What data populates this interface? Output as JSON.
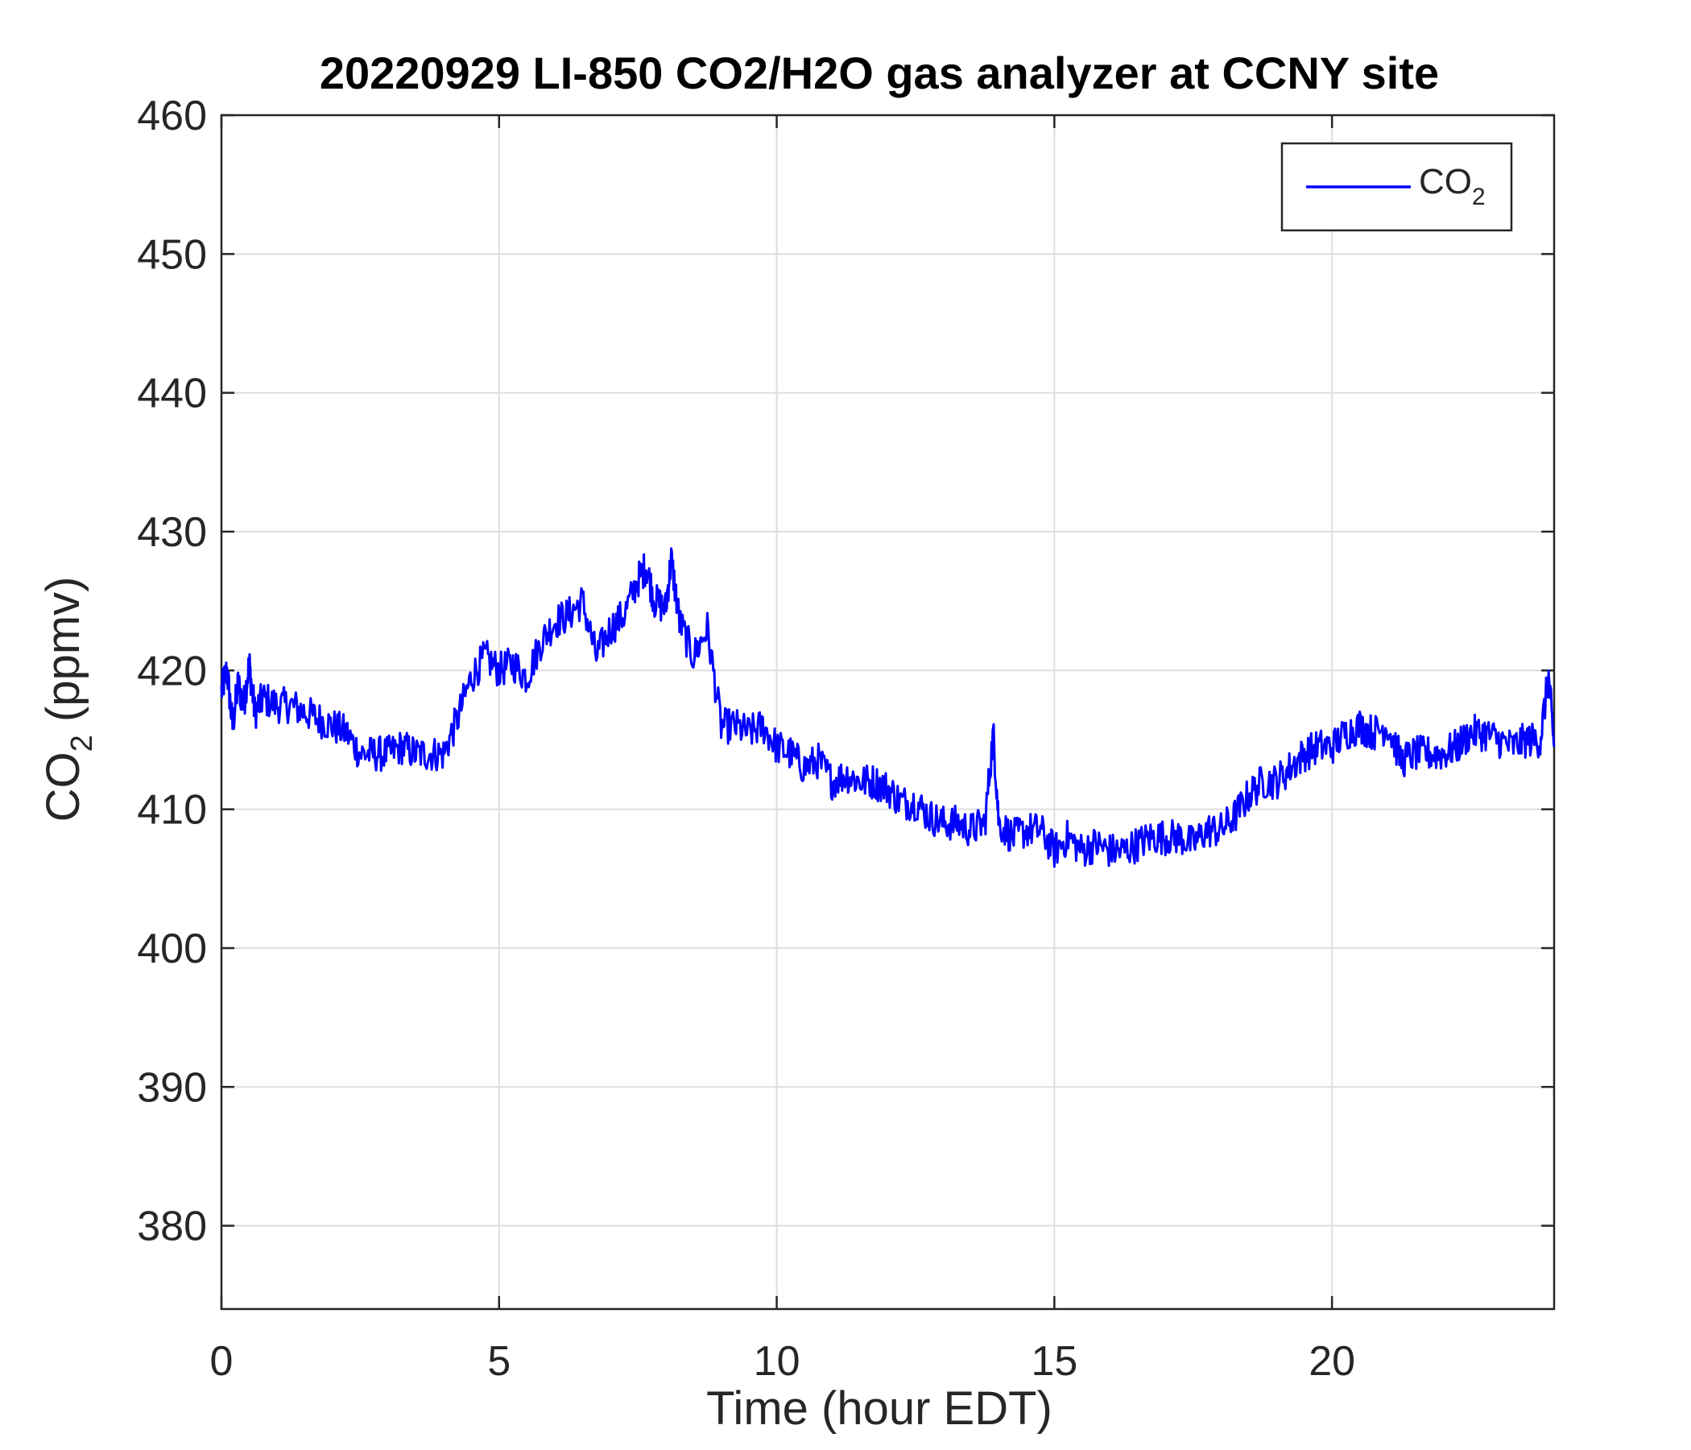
{
  "chart_data": {
    "type": "line",
    "title": "20220929 LI-850 CO2/H2O gas analyzer at CCNY site",
    "xlabel": "Time (hour EDT)",
    "ylabel": {
      "main": "CO",
      "sub": "2",
      "unit": " (ppmv)"
    },
    "xlim": [
      0,
      24
    ],
    "ylim": [
      374,
      460
    ],
    "xticks": [
      0,
      5,
      10,
      15,
      20
    ],
    "yticks": [
      380,
      390,
      400,
      410,
      420,
      430,
      440,
      450,
      460
    ],
    "grid": true,
    "legend": {
      "position": "top-right",
      "entries": [
        {
          "main": "CO",
          "sub": "2"
        }
      ]
    },
    "series": [
      {
        "name": "CO2",
        "color": "#0000ff",
        "x": [
          0,
          0.1,
          0.2,
          0.3,
          0.4,
          0.5,
          0.6,
          0.75,
          1.0,
          1.25,
          1.5,
          1.75,
          2.0,
          2.25,
          2.5,
          2.75,
          3.0,
          3.25,
          3.5,
          3.75,
          4.0,
          4.25,
          4.5,
          4.75,
          5.0,
          5.25,
          5.5,
          5.75,
          6.0,
          6.25,
          6.5,
          6.75,
          7.0,
          7.25,
          7.5,
          7.65,
          7.8,
          8.0,
          8.1,
          8.25,
          8.5,
          8.75,
          9.0,
          9.25,
          9.5,
          9.75,
          10.0,
          10.25,
          10.5,
          10.75,
          11.0,
          11.25,
          11.5,
          11.75,
          12.0,
          12.25,
          12.5,
          12.75,
          13.0,
          13.25,
          13.5,
          13.75,
          13.9,
          14.0,
          14.25,
          14.5,
          14.75,
          15.0,
          15.25,
          15.5,
          15.75,
          16.0,
          16.25,
          16.5,
          16.75,
          17.0,
          17.25,
          17.5,
          17.75,
          18.0,
          18.25,
          18.5,
          18.75,
          19.0,
          19.25,
          19.5,
          19.75,
          20.0,
          20.25,
          20.5,
          20.75,
          21.0,
          21.25,
          21.5,
          21.75,
          22.0,
          22.25,
          22.5,
          22.75,
          23.0,
          23.25,
          23.5,
          23.75,
          23.9,
          24.0
        ],
        "y": [
          418.5,
          420,
          416,
          419,
          417.5,
          420.5,
          417,
          418,
          417.5,
          417.5,
          417,
          416.5,
          416,
          415.5,
          414,
          414,
          414,
          414.5,
          414,
          414,
          414,
          416.5,
          419.5,
          421,
          420,
          420.5,
          419.5,
          422,
          423.5,
          424,
          425,
          421,
          423,
          424,
          426.5,
          427.5,
          425,
          424.5,
          428,
          423.5,
          421,
          423,
          416,
          416,
          415.5,
          416,
          414.5,
          414,
          413,
          413.5,
          412,
          412.5,
          412,
          412,
          411.5,
          410.5,
          410.5,
          409.5,
          409,
          409,
          408.5,
          409,
          415.5,
          409,
          408,
          408.5,
          408.5,
          407,
          408,
          407,
          407.5,
          407,
          407,
          407.5,
          408,
          408,
          408,
          407.5,
          408.5,
          408.5,
          409.5,
          411,
          412,
          412,
          413,
          414,
          414.5,
          414.5,
          415.5,
          416,
          415.5,
          416,
          413.5,
          414,
          414,
          414,
          414.5,
          415.5,
          415.5,
          415,
          414.5,
          415,
          415,
          419.5,
          414.5
        ]
      }
    ]
  }
}
